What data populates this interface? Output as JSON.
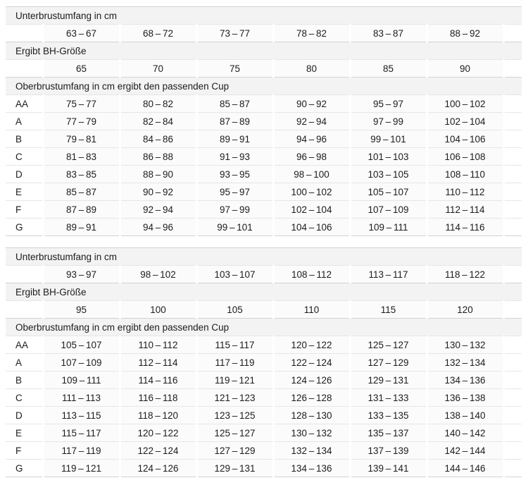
{
  "colors": {
    "band_bg": "#f3f3f3",
    "border_strong": "#d2d2d2",
    "border_light": "#e6e6e6",
    "cell_tint": "#fbfbfb",
    "text": "#1c1c1c",
    "page_bg": "#ffffff"
  },
  "sections": [
    {
      "underbust_label": "Unterbrustumfang in cm",
      "underbust_ranges": [
        "63 – 67",
        "68 – 72",
        "73 – 77",
        "78 – 82",
        "83 – 87",
        "88 – 92"
      ],
      "band_size_label": "Ergibt BH-Größe",
      "band_sizes": [
        "65",
        "70",
        "75",
        "80",
        "85",
        "90"
      ],
      "cup_label": "Oberbrustumfang in cm ergibt den passenden Cup",
      "cup_rows": [
        {
          "cup": "AA",
          "ranges": [
            "75 – 77",
            "80 – 82",
            "85 – 87",
            "90 – 92",
            "95 – 97",
            "100 – 102"
          ]
        },
        {
          "cup": "A",
          "ranges": [
            "77 – 79",
            "82 – 84",
            "87 – 89",
            "92 – 94",
            "97 – 99",
            "102 – 104"
          ]
        },
        {
          "cup": "B",
          "ranges": [
            "79 – 81",
            "84 – 86",
            "89 – 91",
            "94 – 96",
            "99 – 101",
            "104 – 106"
          ]
        },
        {
          "cup": "C",
          "ranges": [
            "81 – 83",
            "86 – 88",
            "91 – 93",
            "96 – 98",
            "101 – 103",
            "106 – 108"
          ]
        },
        {
          "cup": "D",
          "ranges": [
            "83 – 85",
            "88 – 90",
            "93 – 95",
            "98 – 100",
            "103 – 105",
            "108 – 110"
          ]
        },
        {
          "cup": "E",
          "ranges": [
            "85 – 87",
            "90 – 92",
            "95 – 97",
            "100 – 102",
            "105 – 107",
            "110 – 112"
          ]
        },
        {
          "cup": "F",
          "ranges": [
            "87 – 89",
            "92 – 94",
            "97 – 99",
            "102 – 104",
            "107 – 109",
            "112 – 114"
          ]
        },
        {
          "cup": "G",
          "ranges": [
            "89 – 91",
            "94 – 96",
            "99 – 101",
            "104 – 106",
            "109 – 111",
            "114 – 116"
          ]
        }
      ]
    },
    {
      "underbust_label": "Unterbrustumfang in cm",
      "underbust_ranges": [
        "93 – 97",
        "98 – 102",
        "103 – 107",
        "108 – 112",
        "113 – 117",
        "118 – 122"
      ],
      "band_size_label": "Ergibt BH-Größe",
      "band_sizes": [
        "95",
        "100",
        "105",
        "110",
        "115",
        "120"
      ],
      "cup_label": "Oberbrustumfang in cm ergibt den passenden Cup",
      "cup_rows": [
        {
          "cup": "AA",
          "ranges": [
            "105 – 107",
            "110 – 112",
            "115 – 117",
            "120 – 122",
            "125 – 127",
            "130 – 132"
          ]
        },
        {
          "cup": "A",
          "ranges": [
            "107 – 109",
            "112 – 114",
            "117 – 119",
            "122 – 124",
            "127 – 129",
            "132 – 134"
          ]
        },
        {
          "cup": "B",
          "ranges": [
            "109 – 111",
            "114 – 116",
            "119 – 121",
            "124 – 126",
            "129 – 131",
            "134 – 136"
          ]
        },
        {
          "cup": "C",
          "ranges": [
            "111 – 113",
            "116 – 118",
            "121 – 123",
            "126 – 128",
            "131 – 133",
            "136 – 138"
          ]
        },
        {
          "cup": "D",
          "ranges": [
            "113 – 115",
            "118 – 120",
            "123 – 125",
            "128 – 130",
            "133 – 135",
            "138 – 140"
          ]
        },
        {
          "cup": "E",
          "ranges": [
            "115 – 117",
            "120 – 122",
            "125 – 127",
            "130 – 132",
            "135 – 137",
            "140 – 142"
          ]
        },
        {
          "cup": "F",
          "ranges": [
            "117 – 119",
            "122 – 124",
            "127 – 129",
            "132 – 134",
            "137 – 139",
            "142 – 144"
          ]
        },
        {
          "cup": "G",
          "ranges": [
            "119 – 121",
            "124 – 126",
            "129 – 131",
            "134 – 136",
            "139 – 141",
            "144 – 146"
          ]
        }
      ]
    }
  ]
}
